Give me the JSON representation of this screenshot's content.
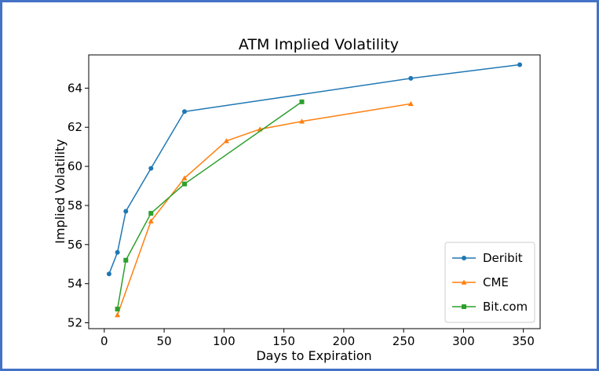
{
  "chart_data": {
    "type": "line",
    "title": "ATM Implied Volatility",
    "xlabel": "Days to Expiration",
    "ylabel": "Implied Volatility",
    "xlim": [
      -13,
      364
    ],
    "ylim": [
      51.7,
      65.7
    ],
    "xticks": [
      0,
      50,
      100,
      150,
      200,
      250,
      300,
      350
    ],
    "yticks": [
      52,
      54,
      56,
      58,
      60,
      62,
      64
    ],
    "grid": false,
    "legend_position": "bottom-right",
    "series": [
      {
        "name": "Deribit",
        "color": "#1f77b4",
        "marker": "circle",
        "points": [
          [
            4,
            54.5
          ],
          [
            11,
            55.6
          ],
          [
            18,
            57.7
          ],
          [
            39,
            59.9
          ],
          [
            67,
            62.8
          ],
          [
            256,
            64.5
          ],
          [
            347,
            65.2
          ]
        ]
      },
      {
        "name": "CME",
        "color": "#ff7f0e",
        "marker": "triangle",
        "points": [
          [
            11,
            52.4
          ],
          [
            39,
            57.2
          ],
          [
            67,
            59.4
          ],
          [
            102,
            61.3
          ],
          [
            130,
            61.9
          ],
          [
            165,
            62.3
          ],
          [
            256,
            63.2
          ]
        ]
      },
      {
        "name": "Bit.com",
        "color": "#2ca02c",
        "marker": "square",
        "points": [
          [
            11,
            52.7
          ],
          [
            18,
            55.2
          ],
          [
            39,
            57.6
          ],
          [
            67,
            59.1
          ],
          [
            165,
            63.3
          ]
        ]
      }
    ]
  },
  "frame_color": "#4472c4"
}
